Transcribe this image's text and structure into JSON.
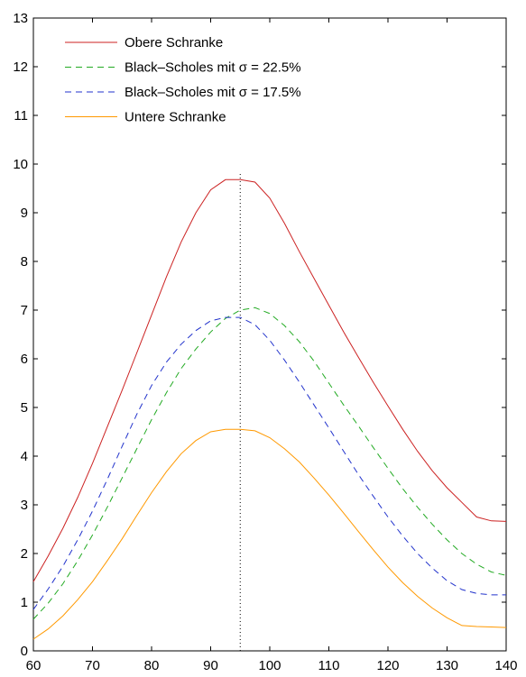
{
  "chart_data": {
    "type": "line",
    "title": "",
    "xlabel": "",
    "ylabel": "",
    "xlim": [
      60,
      140
    ],
    "ylim": [
      0,
      13
    ],
    "xticks": [
      60,
      70,
      80,
      90,
      100,
      110,
      120,
      130,
      140
    ],
    "yticks": [
      0,
      1,
      2,
      3,
      4,
      5,
      6,
      7,
      8,
      9,
      10,
      11,
      12,
      13
    ],
    "grid": false,
    "legend": "top-left",
    "vline": {
      "x": 95,
      "style": "dotted",
      "color": "#000000"
    },
    "x": [
      60,
      62.5,
      65,
      67.5,
      70,
      72.5,
      75,
      77.5,
      80,
      82.5,
      85,
      87.5,
      90,
      92.5,
      95,
      97.5,
      100,
      102.5,
      105,
      107.5,
      110,
      112.5,
      115,
      117.5,
      120,
      122.5,
      125,
      127.5,
      130,
      132.5,
      135,
      137.5,
      140
    ],
    "series": [
      {
        "name": "Obere Schranke",
        "color": "#cc2222",
        "dash": "solid",
        "values": [
          1.42,
          1.95,
          2.52,
          3.15,
          3.85,
          4.6,
          5.35,
          6.12,
          6.9,
          7.68,
          8.4,
          9.0,
          9.47,
          9.68,
          9.68,
          9.63,
          9.3,
          8.78,
          8.2,
          7.65,
          7.1,
          6.55,
          6.03,
          5.52,
          5.03,
          4.55,
          4.1,
          3.7,
          3.35,
          3.05,
          2.75,
          2.67,
          2.66
        ]
      },
      {
        "name": "Black–Scholes mit σ = 22.5%",
        "color": "#22aa22",
        "dash": "dashed",
        "values": [
          0.65,
          0.98,
          1.38,
          1.85,
          2.38,
          2.95,
          3.55,
          4.15,
          4.75,
          5.3,
          5.8,
          6.2,
          6.55,
          6.83,
          7.0,
          7.05,
          6.93,
          6.68,
          6.35,
          5.95,
          5.5,
          5.05,
          4.62,
          4.18,
          3.75,
          3.33,
          2.95,
          2.6,
          2.28,
          2.0,
          1.78,
          1.62,
          1.55
        ]
      },
      {
        "name": "Black–Scholes mit σ = 17.5%",
        "color": "#2233cc",
        "dash": "dashed",
        "values": [
          0.85,
          1.27,
          1.74,
          2.28,
          2.87,
          3.52,
          4.2,
          4.86,
          5.45,
          5.93,
          6.3,
          6.58,
          6.78,
          6.85,
          6.85,
          6.7,
          6.38,
          5.97,
          5.52,
          5.05,
          4.58,
          4.1,
          3.62,
          3.18,
          2.75,
          2.36,
          2.0,
          1.7,
          1.44,
          1.26,
          1.18,
          1.15,
          1.15
        ]
      },
      {
        "name": "Untere Schranke",
        "color": "#ff9900",
        "dash": "solid",
        "values": [
          0.24,
          0.45,
          0.72,
          1.05,
          1.42,
          1.85,
          2.3,
          2.78,
          3.25,
          3.68,
          4.05,
          4.32,
          4.5,
          4.55,
          4.55,
          4.52,
          4.38,
          4.15,
          3.88,
          3.55,
          3.2,
          2.83,
          2.45,
          2.08,
          1.72,
          1.4,
          1.12,
          0.88,
          0.68,
          0.52,
          0.5,
          0.49,
          0.48
        ]
      }
    ]
  }
}
